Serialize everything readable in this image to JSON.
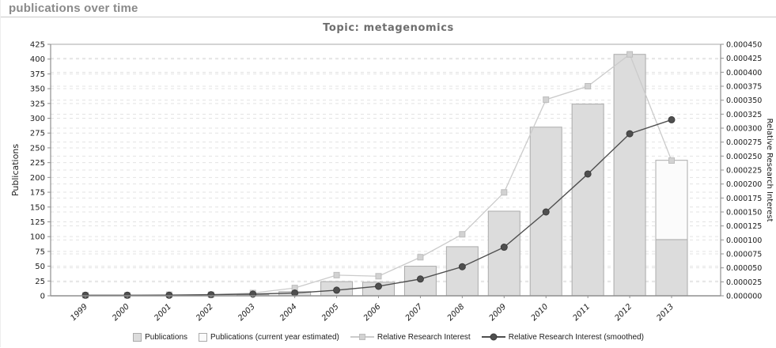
{
  "header": {
    "title": "publications over time"
  },
  "chart": {
    "title": "Topic: metagenomics"
  },
  "chart_data": {
    "type": "bar+line",
    "title": "Topic: metagenomics",
    "categories": [
      "1999",
      "2000",
      "2001",
      "2002",
      "2003",
      "2004",
      "2005",
      "2006",
      "2007",
      "2008",
      "2009",
      "2010",
      "2011",
      "2012",
      "2013"
    ],
    "series": [
      {
        "name": "Publications",
        "type": "bar",
        "axis": "left",
        "values": [
          0,
          0,
          0,
          0,
          2,
          7,
          24,
          23,
          50,
          83,
          143,
          285,
          324,
          408,
          95
        ]
      },
      {
        "name": "Publications (current year estimated)",
        "type": "bar",
        "axis": "left",
        "values": [
          null,
          null,
          null,
          null,
          null,
          null,
          null,
          null,
          null,
          null,
          null,
          null,
          null,
          null,
          229
        ]
      },
      {
        "name": "Relative Research Interest",
        "type": "line",
        "axis": "right",
        "marker": "square",
        "values": [
          1e-06,
          1e-06,
          2e-06,
          2e-06,
          5e-06,
          1.4e-05,
          3.7e-05,
          3.5e-05,
          6.9e-05,
          0.00011,
          0.000185,
          0.000351,
          0.000375,
          0.000432,
          0.000242
        ]
      },
      {
        "name": "Relative Research Interest (smoothed)",
        "type": "line",
        "axis": "right",
        "marker": "circle",
        "values": [
          1e-06,
          1e-06,
          1e-06,
          2e-06,
          3e-06,
          5e-06,
          1e-05,
          1.7e-05,
          3e-05,
          5.2e-05,
          8.7e-05,
          0.00015,
          0.000218,
          0.00029,
          0.000315
        ]
      }
    ],
    "left_axis": {
      "label": "Publications",
      "min": 0,
      "max": 425,
      "step": 25
    },
    "right_axis": {
      "label": "Relative Research Interest",
      "min": 0,
      "max": 0.00045,
      "step": 2.5e-05,
      "decimals": 6
    },
    "grid": true,
    "legend_position": "bottom"
  },
  "colors": {
    "bar_fill": "#dcdcdc",
    "bar_stroke": "#ababab",
    "bar_estimated_fill": "#fbfbfb",
    "line_rri": "#cbcbcb",
    "marker_rri_fill": "#d2d2d2",
    "marker_rri_stroke": "#bdbdbd",
    "line_smoothed": "#4f4f4f",
    "grid_line": "#e3e3e3",
    "axis_line": "#8f8f8f",
    "frame_line": "#a8a8a8",
    "tick_text": "#1c1c1c",
    "chart_title": "#6e6e6e",
    "page_title": "#8a8a8a"
  }
}
